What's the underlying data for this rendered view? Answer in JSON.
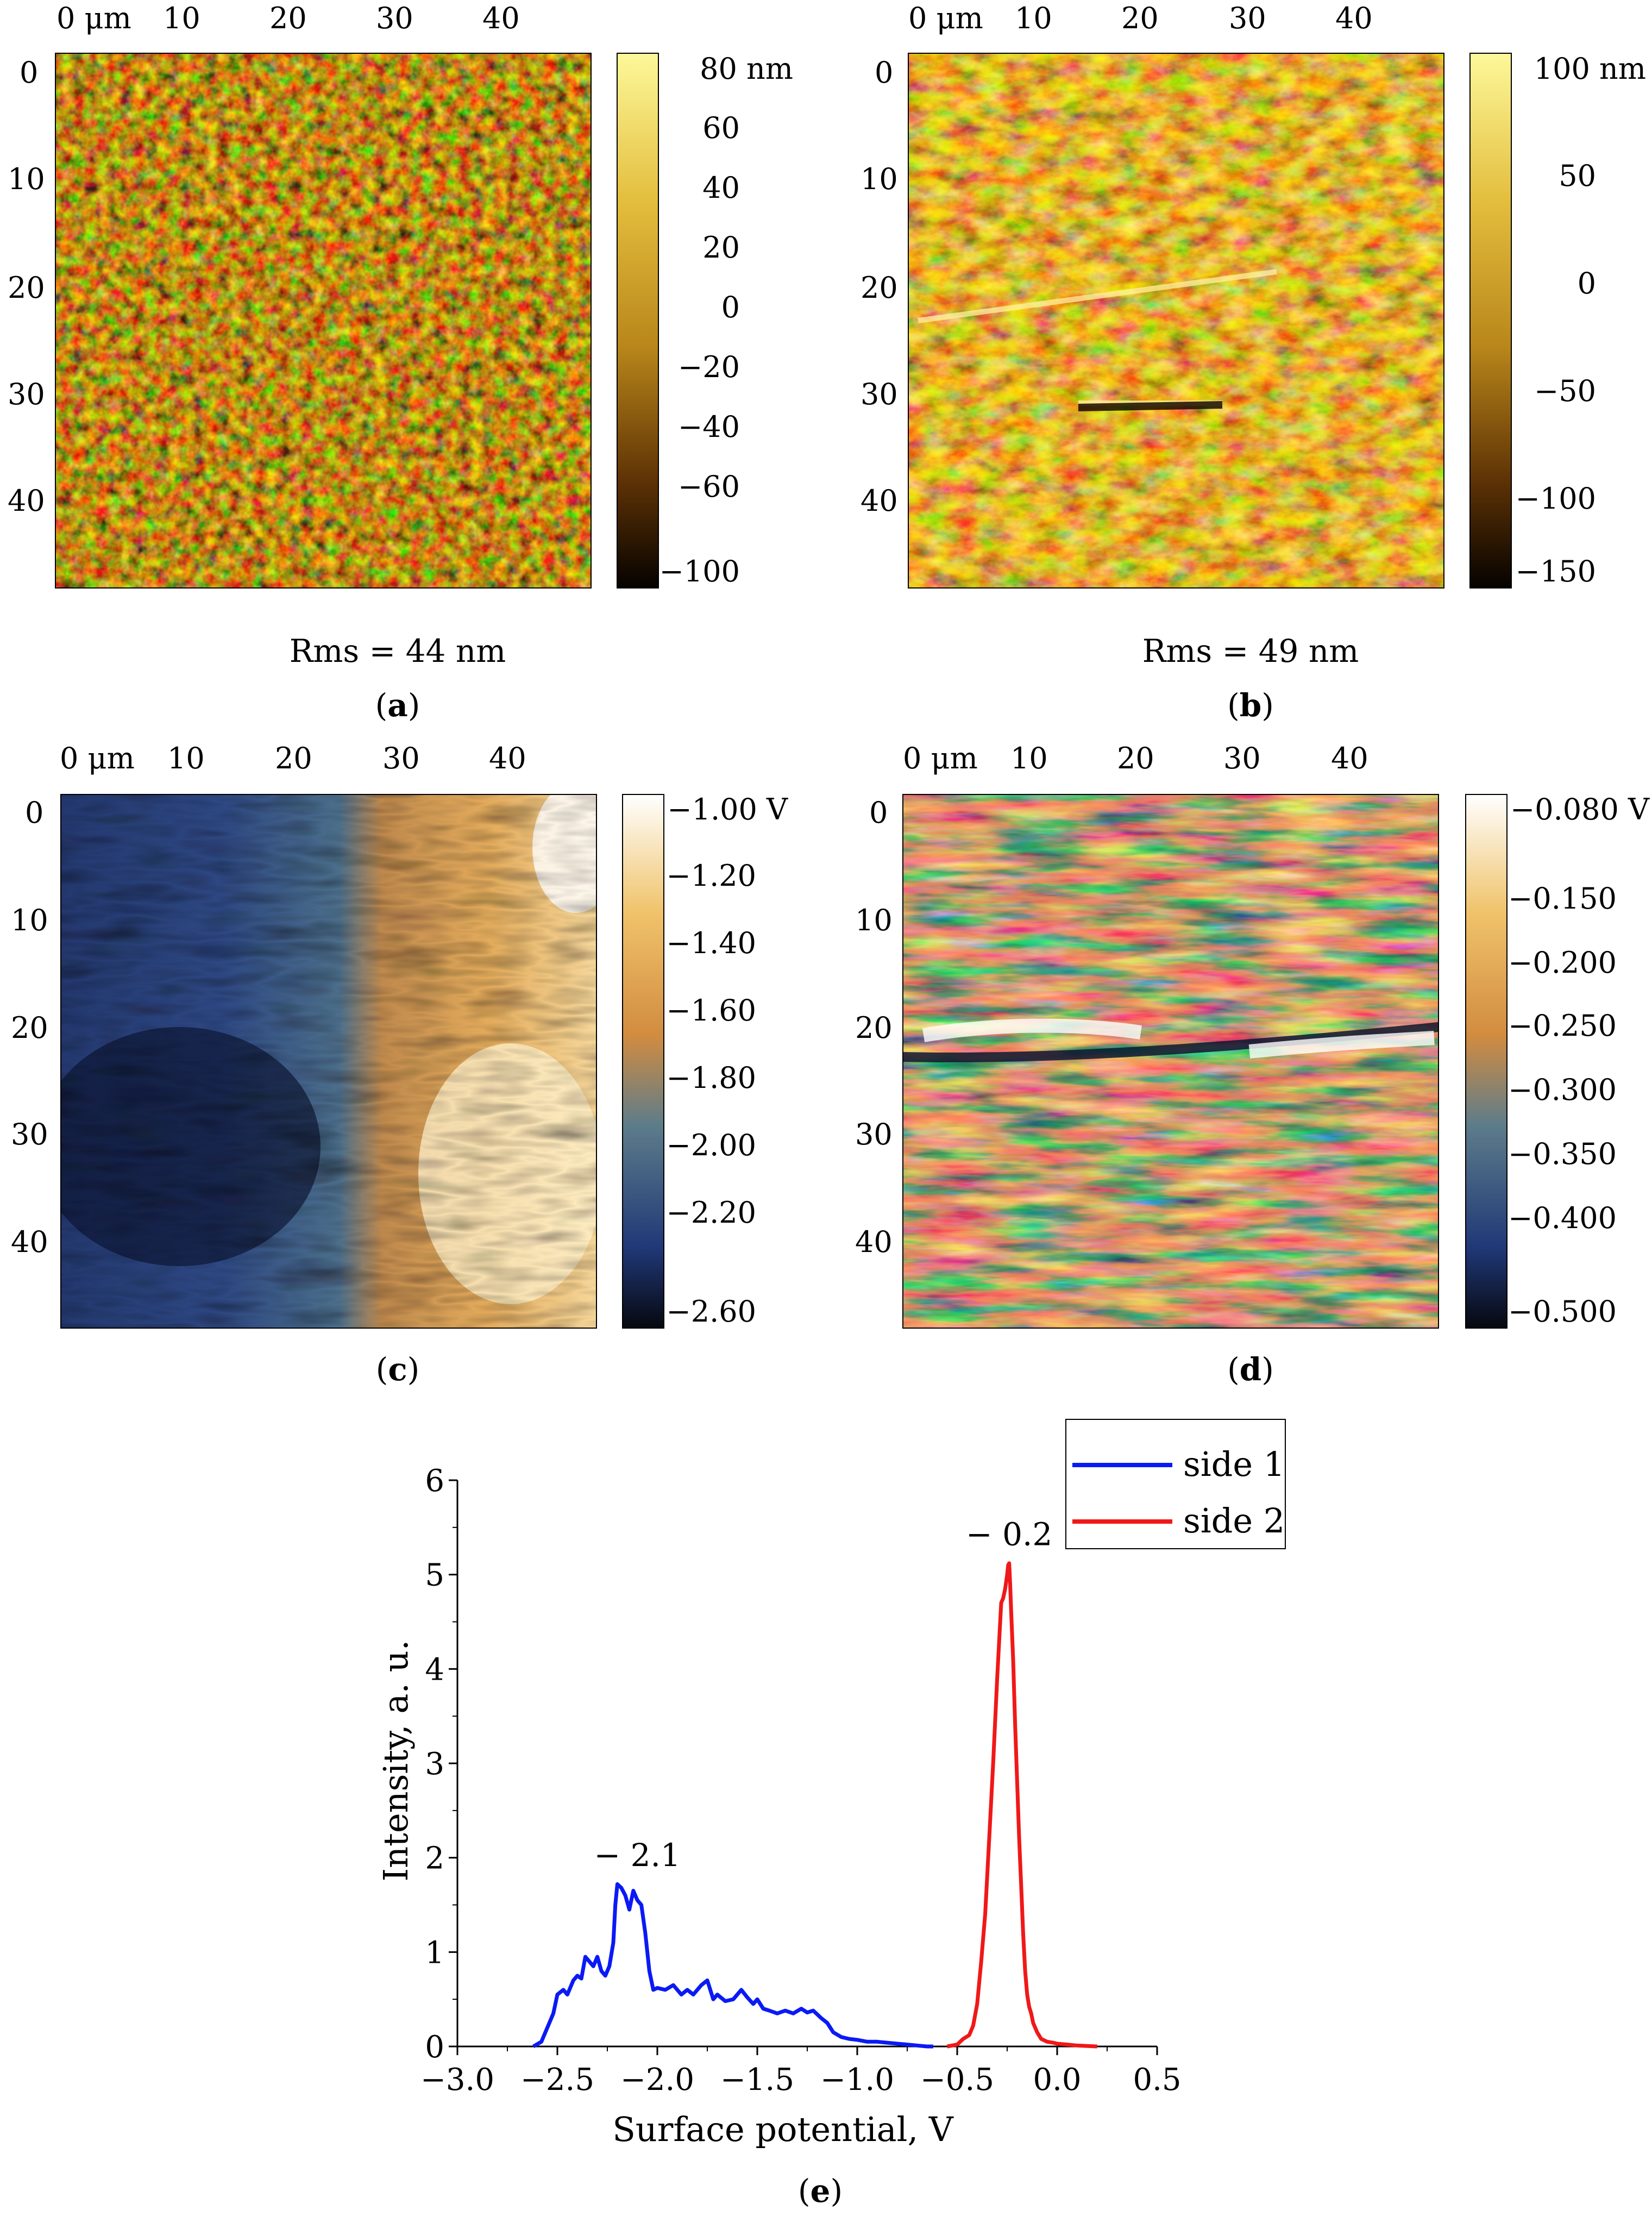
{
  "colors": {
    "blue": "#0a1af5",
    "red": "#f01818",
    "axis": "#000000"
  },
  "panels": [
    {
      "id": "a",
      "label": "a",
      "caption": "Rms = 44 nm",
      "x_ticks": [
        "0 μm",
        "10",
        "20",
        "30",
        "40"
      ],
      "y_ticks": [
        "0",
        "10",
        "20",
        "30",
        "40"
      ],
      "colorbar_ticks": [
        "80 nm",
        "60",
        "40",
        "20",
        "0",
        "−20",
        "−40",
        "−60",
        "−100"
      ],
      "colormap": "afm-gold",
      "texture": "grain"
    },
    {
      "id": "b",
      "label": "b",
      "caption": "Rms = 49 nm",
      "x_ticks": [
        "0 μm",
        "10",
        "20",
        "30",
        "40"
      ],
      "y_ticks": [
        "0",
        "10",
        "20",
        "30",
        "40"
      ],
      "colorbar_ticks": [
        "100 nm",
        "50",
        "0",
        "−50",
        "−100",
        "−150"
      ],
      "colormap": "afm-gold",
      "texture": "scratched"
    },
    {
      "id": "c",
      "label": "c",
      "caption": "",
      "x_ticks": [
        "0 μm",
        "10",
        "20",
        "30",
        "40"
      ],
      "y_ticks": [
        "0",
        "10",
        "20",
        "30",
        "40"
      ],
      "colorbar_ticks": [
        "−1.00 V",
        "−1.20",
        "−1.40",
        "−1.60",
        "−1.80",
        "−2.00",
        "−2.20",
        "−2.60"
      ],
      "colormap": "kpfm-blue-orange",
      "texture": "split"
    },
    {
      "id": "d",
      "label": "d",
      "caption": "",
      "x_ticks": [
        "0 μm",
        "10",
        "20",
        "30",
        "40"
      ],
      "y_ticks": [
        "0",
        "10",
        "20",
        "30",
        "40"
      ],
      "colorbar_ticks": [
        "−0.080 V",
        "−0.150",
        "−0.200",
        "−0.250",
        "−0.300",
        "−0.350",
        "−0.400",
        "−0.500"
      ],
      "colormap": "kpfm-blue-orange",
      "texture": "striped"
    }
  ],
  "chart_data": {
    "type": "line",
    "label": "e",
    "xlabel": "Surface potential, V",
    "ylabel": "Intensity, a. u.",
    "xlim": [
      -3.0,
      0.5
    ],
    "ylim": [
      0,
      6
    ],
    "x_tick_labels": [
      "−3.0",
      "−2.5",
      "−2.0",
      "−1.5",
      "−1.0",
      "−0.5",
      "0.0",
      "0.5"
    ],
    "y_tick_labels": [
      "0",
      "1",
      "2",
      "3",
      "4",
      "5",
      "6"
    ],
    "legend_position": "top-right",
    "annotations": [
      {
        "text": "− 2.1",
        "x": -2.1,
        "y": 1.75
      },
      {
        "text": "− 0.2",
        "x": -0.24,
        "y": 5.15
      }
    ],
    "series": [
      {
        "name": "side 1",
        "color": "#0a1af5",
        "x": [
          -2.62,
          -2.58,
          -2.55,
          -2.52,
          -2.5,
          -2.47,
          -2.45,
          -2.42,
          -2.4,
          -2.38,
          -2.36,
          -2.34,
          -2.32,
          -2.3,
          -2.28,
          -2.26,
          -2.24,
          -2.22,
          -2.21,
          -2.2,
          -2.18,
          -2.16,
          -2.14,
          -2.12,
          -2.1,
          -2.08,
          -2.06,
          -2.04,
          -2.02,
          -2.0,
          -1.96,
          -1.92,
          -1.88,
          -1.85,
          -1.82,
          -1.78,
          -1.75,
          -1.72,
          -1.7,
          -1.66,
          -1.62,
          -1.58,
          -1.55,
          -1.52,
          -1.5,
          -1.47,
          -1.44,
          -1.4,
          -1.36,
          -1.32,
          -1.28,
          -1.25,
          -1.22,
          -1.18,
          -1.15,
          -1.12,
          -1.08,
          -1.04,
          -1.0,
          -0.95,
          -0.9,
          -0.85,
          -0.8,
          -0.75,
          -0.7,
          -0.65,
          -0.62
        ],
        "y": [
          0.0,
          0.05,
          0.2,
          0.35,
          0.55,
          0.6,
          0.55,
          0.7,
          0.75,
          0.72,
          0.95,
          0.9,
          0.85,
          0.95,
          0.8,
          0.75,
          0.85,
          1.1,
          1.5,
          1.72,
          1.68,
          1.6,
          1.45,
          1.65,
          1.55,
          1.5,
          1.2,
          0.8,
          0.6,
          0.62,
          0.6,
          0.65,
          0.55,
          0.6,
          0.55,
          0.65,
          0.7,
          0.5,
          0.55,
          0.48,
          0.5,
          0.6,
          0.52,
          0.45,
          0.5,
          0.4,
          0.38,
          0.35,
          0.38,
          0.35,
          0.4,
          0.36,
          0.38,
          0.3,
          0.25,
          0.15,
          0.1,
          0.08,
          0.07,
          0.05,
          0.05,
          0.04,
          0.03,
          0.02,
          0.01,
          0.0,
          0.0
        ]
      },
      {
        "name": "side 2",
        "color": "#f01818",
        "x": [
          -0.55,
          -0.5,
          -0.47,
          -0.44,
          -0.42,
          -0.4,
          -0.38,
          -0.36,
          -0.34,
          -0.32,
          -0.3,
          -0.29,
          -0.28,
          -0.27,
          -0.26,
          -0.25,
          -0.245,
          -0.24,
          -0.235,
          -0.23,
          -0.22,
          -0.21,
          -0.2,
          -0.19,
          -0.18,
          -0.17,
          -0.16,
          -0.15,
          -0.14,
          -0.13,
          -0.12,
          -0.1,
          -0.08,
          -0.05,
          -0.02,
          0.0,
          0.05,
          0.1,
          0.15,
          0.2
        ],
        "y": [
          0.0,
          0.02,
          0.08,
          0.12,
          0.22,
          0.45,
          0.9,
          1.4,
          2.2,
          3.0,
          3.9,
          4.3,
          4.7,
          4.75,
          4.85,
          5.0,
          5.1,
          5.12,
          4.9,
          4.6,
          4.1,
          3.4,
          2.8,
          2.2,
          1.7,
          1.2,
          0.8,
          0.55,
          0.42,
          0.35,
          0.25,
          0.15,
          0.08,
          0.05,
          0.04,
          0.03,
          0.02,
          0.01,
          0.005,
          0.0
        ]
      }
    ]
  }
}
